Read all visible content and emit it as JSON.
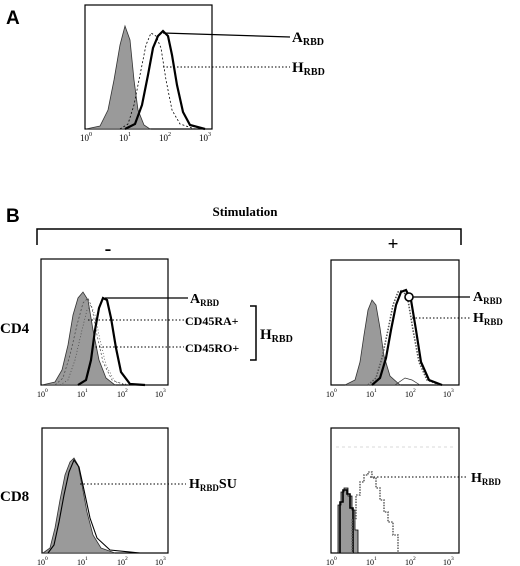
{
  "panel_a": {
    "letter": "A",
    "ticks": [
      "10",
      "10",
      "10",
      "10"
    ],
    "tick_exps": [
      "0",
      "1",
      "2",
      "3"
    ],
    "labels": [
      {
        "main": "A",
        "sub": "RBD"
      },
      {
        "main": "H",
        "sub": "RBD"
      }
    ]
  },
  "panel_b": {
    "letter": "B",
    "stimulation_title": "Stimulation",
    "minus_label": "-",
    "plus_label": "+",
    "row_labels": [
      "CD4",
      "CD8"
    ],
    "ticks": [
      "10",
      "10",
      "10",
      "10"
    ],
    "tick_exps": [
      "0",
      "1",
      "2",
      "3"
    ],
    "cd4_minus_labels": {
      "a_rbd": {
        "main": "A",
        "sub": "RBD"
      },
      "cd45ra": "CD45RA+",
      "cd45ro": "CD45RO+",
      "h_rbd": {
        "main": "H",
        "sub": "RBD"
      }
    },
    "cd4_plus_labels": {
      "a_rbd": {
        "main": "A",
        "sub": "RBD"
      },
      "h_rbd": {
        "main": "H",
        "sub": "RBD"
      }
    },
    "cd8_minus_label": {
      "main": "H",
      "sub": "RBD",
      "suffix": "SU"
    },
    "cd8_plus_label": {
      "main": "H",
      "sub": "RBD"
    }
  },
  "colors": {
    "fill": "#9a9a9a",
    "ink": "#000000"
  }
}
